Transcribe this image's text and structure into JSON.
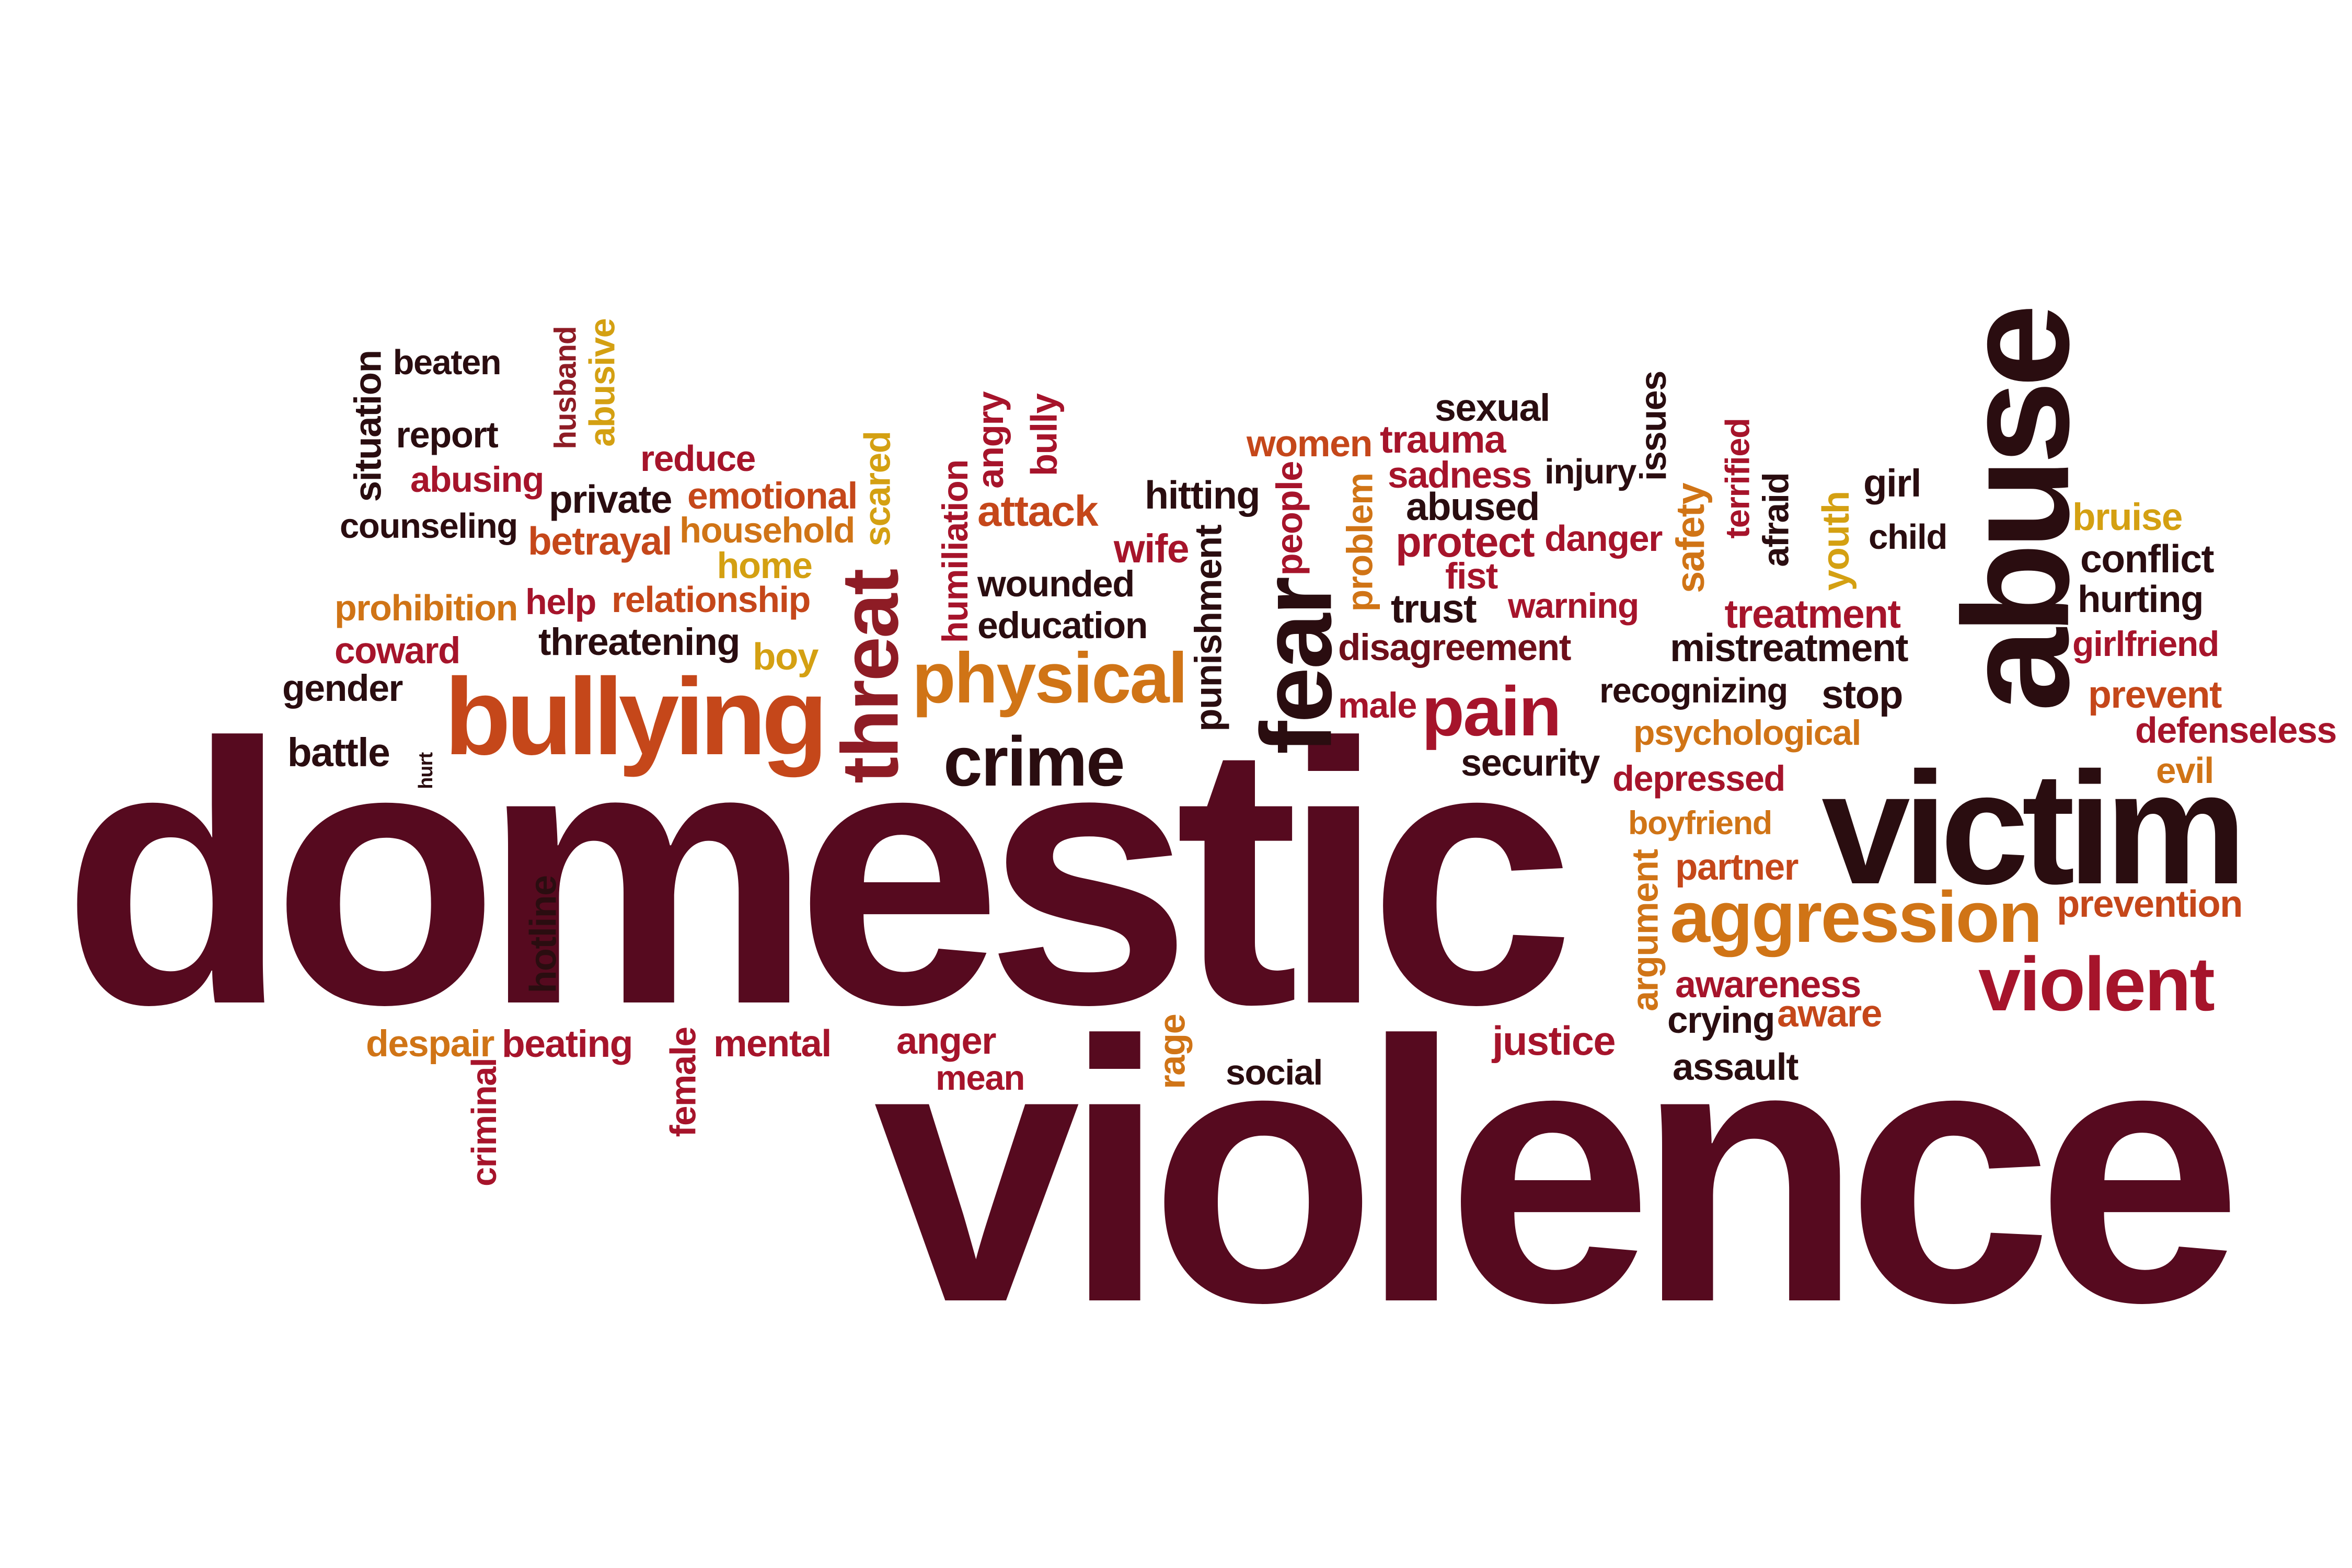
{
  "palette": {
    "maroon": "#560a1f",
    "wine": "#6e0f1a",
    "crimson": "#a6142b",
    "red": "#b0201a",
    "rust": "#c5471a",
    "orange": "#d07416",
    "gold": "#d4a012",
    "dark": "#2a0d10"
  },
  "words": [
    {
      "text": "domestic",
      "color": "#560a1f"
    },
    {
      "text": "violence",
      "color": "#560a1f"
    },
    {
      "text": "abuse",
      "color": "#2a0d10"
    },
    {
      "text": "victim",
      "color": "#2a0d10"
    },
    {
      "text": "bullying",
      "color": "#c5471a"
    },
    {
      "text": "threat",
      "color": "#8e1c25"
    },
    {
      "text": "physical",
      "color": "#d07416"
    },
    {
      "text": "fear",
      "color": "#2a0d10"
    },
    {
      "text": "pain",
      "color": "#a6142b"
    },
    {
      "text": "crime",
      "color": "#2a0d10"
    },
    {
      "text": "aggression",
      "color": "#d07416"
    },
    {
      "text": "violent",
      "color": "#a6142b"
    },
    {
      "text": "situation",
      "color": "#2a0d10"
    },
    {
      "text": "beaten",
      "color": "#2a0d10"
    },
    {
      "text": "husband",
      "color": "#8e1c25"
    },
    {
      "text": "abusive",
      "color": "#d4a012"
    },
    {
      "text": "report",
      "color": "#2a0d10"
    },
    {
      "text": "reduce",
      "color": "#a6142b"
    },
    {
      "text": "abusing",
      "color": "#a6142b"
    },
    {
      "text": "private",
      "color": "#2a0d10"
    },
    {
      "text": "emotional",
      "color": "#c5471a"
    },
    {
      "text": "scared",
      "color": "#d4a012"
    },
    {
      "text": "counseling",
      "color": "#2a0d10"
    },
    {
      "text": "betrayal",
      "color": "#c5471a"
    },
    {
      "text": "household",
      "color": "#d07416"
    },
    {
      "text": "home",
      "color": "#d4a012"
    },
    {
      "text": "prohibition",
      "color": "#d07416"
    },
    {
      "text": "help",
      "color": "#a6142b"
    },
    {
      "text": "relationship",
      "color": "#c5471a"
    },
    {
      "text": "coward",
      "color": "#a6142b"
    },
    {
      "text": "threatening",
      "color": "#2a0d10"
    },
    {
      "text": "boy",
      "color": "#d4a012"
    },
    {
      "text": "gender",
      "color": "#2a0d10"
    },
    {
      "text": "battle",
      "color": "#2a0d10"
    },
    {
      "text": "hurt",
      "color": "#2a0d10"
    },
    {
      "text": "humiliation",
      "color": "#a6142b"
    },
    {
      "text": "angry",
      "color": "#a6142b"
    },
    {
      "text": "bully",
      "color": "#a6142b"
    },
    {
      "text": "attack",
      "color": "#c5471a"
    },
    {
      "text": "wounded",
      "color": "#2a0d10"
    },
    {
      "text": "education",
      "color": "#2a0d10"
    },
    {
      "text": "hitting",
      "color": "#2a0d10"
    },
    {
      "text": "wife",
      "color": "#a6142b"
    },
    {
      "text": "punishment",
      "color": "#2a0d10"
    },
    {
      "text": "people",
      "color": "#a6142b"
    },
    {
      "text": "women",
      "color": "#c5471a"
    },
    {
      "text": "problem",
      "color": "#d07416"
    },
    {
      "text": "sexual",
      "color": "#2a0d10"
    },
    {
      "text": "trauma",
      "color": "#a6142b"
    },
    {
      "text": "sadness",
      "color": "#a6142b"
    },
    {
      "text": "abused",
      "color": "#2a0d10"
    },
    {
      "text": "protect",
      "color": "#a6142b"
    },
    {
      "text": "fist",
      "color": "#a6142b"
    },
    {
      "text": "trust",
      "color": "#2a0d10"
    },
    {
      "text": "disagreement",
      "color": "#6e0f1a"
    },
    {
      "text": "male",
      "color": "#a6142b"
    },
    {
      "text": "injury",
      "color": "#2a0d10"
    },
    {
      "text": "issues",
      "color": "#2a0d10"
    },
    {
      "text": "danger",
      "color": "#a6142b"
    },
    {
      "text": "warning",
      "color": "#a6142b"
    },
    {
      "text": "security",
      "color": "#2a0d10"
    },
    {
      "text": "recognizing",
      "color": "#2a0d10"
    },
    {
      "text": "safety",
      "color": "#d07416"
    },
    {
      "text": "terrified",
      "color": "#a6142b"
    },
    {
      "text": "afraid",
      "color": "#2a0d10"
    },
    {
      "text": "youth",
      "color": "#d4a012"
    },
    {
      "text": "treatment",
      "color": "#a6142b"
    },
    {
      "text": "mistreatment",
      "color": "#2a0d10"
    },
    {
      "text": "stop",
      "color": "#2a0d10"
    },
    {
      "text": "psychological",
      "color": "#d07416"
    },
    {
      "text": "depressed",
      "color": "#a6142b"
    },
    {
      "text": "boyfriend",
      "color": "#d07416"
    },
    {
      "text": "partner",
      "color": "#c5471a"
    },
    {
      "text": "argument",
      "color": "#d07416"
    },
    {
      "text": "awareness",
      "color": "#a6142b"
    },
    {
      "text": "crying",
      "color": "#2a0d10"
    },
    {
      "text": "aware",
      "color": "#c5471a"
    },
    {
      "text": "assault",
      "color": "#2a0d10"
    },
    {
      "text": "girl",
      "color": "#2a0d10"
    },
    {
      "text": "child",
      "color": "#2a0d10"
    },
    {
      "text": "bruise",
      "color": "#d4a012"
    },
    {
      "text": "conflict",
      "color": "#2a0d10"
    },
    {
      "text": "hurting",
      "color": "#2a0d10"
    },
    {
      "text": "girlfriend",
      "color": "#a6142b"
    },
    {
      "text": "prevent",
      "color": "#c5471a"
    },
    {
      "text": "defenseless",
      "color": "#a6142b"
    },
    {
      "text": "evil",
      "color": "#d07416"
    },
    {
      "text": "prevention",
      "color": "#c5471a"
    },
    {
      "text": "hotline",
      "color": "#2a0d10"
    },
    {
      "text": "despair",
      "color": "#d07416"
    },
    {
      "text": "beating",
      "color": "#a6142b"
    },
    {
      "text": "criminal",
      "color": "#a6142b"
    },
    {
      "text": "female",
      "color": "#a6142b"
    },
    {
      "text": "mental",
      "color": "#a6142b"
    },
    {
      "text": "anger",
      "color": "#a6142b"
    },
    {
      "text": "mean",
      "color": "#a6142b"
    },
    {
      "text": "rage",
      "color": "#d07416"
    },
    {
      "text": "social",
      "color": "#2a0d10"
    },
    {
      "text": "justice",
      "color": "#a6142b"
    }
  ]
}
